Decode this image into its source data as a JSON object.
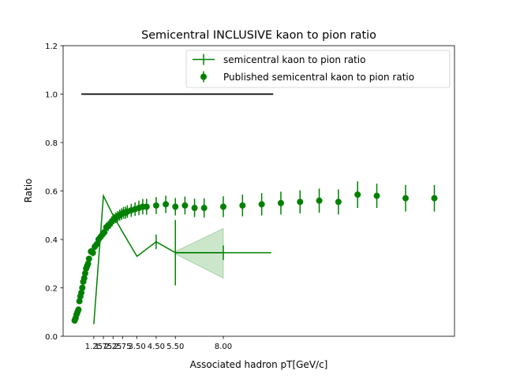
{
  "chart_data": {
    "type": "line",
    "title": "Semicentral INCLUSIVE kaon to pion ratio",
    "xlabel": "Associated hadron pT[GeV/c]",
    "ylabel": "Ratio",
    "xlim": [
      -0.35,
      20.05
    ],
    "ylim": [
      0,
      1.2
    ],
    "xticks": [
      1.25,
      1.75,
      2.25,
      2.75,
      3.5,
      4.5,
      5.5,
      8.0
    ],
    "xtick_labels": [
      "1.25",
      "1.75",
      "2.25",
      "2.75",
      "3.50",
      "4.50",
      "5.50",
      "8.00"
    ],
    "yticks": [
      0.0,
      0.2,
      0.4,
      0.6,
      0.8,
      1.0,
      1.2
    ],
    "ytick_labels": [
      "0.0",
      "0.2",
      "0.4",
      "0.6",
      "0.8",
      "1.0",
      "1.2"
    ],
    "legend_position": "top-right",
    "reference_line": {
      "y": 1.0,
      "x_start": 0.6,
      "x_end": 10.6,
      "color": "#000000"
    },
    "series": [
      {
        "name": "semicentral kaon to pion ratio",
        "color": "#008000",
        "x": [
          1.25,
          1.75,
          2.25,
          2.75,
          3.5,
          4.5,
          5.5,
          8.0
        ],
        "y": [
          0.05,
          0.58,
          0.5,
          0.43,
          0.33,
          0.39,
          0.345,
          0.345
        ],
        "xerr": [
          0,
          0,
          0,
          0,
          0,
          0,
          0,
          2.5
        ],
        "yerr": [
          0,
          0,
          0,
          0,
          0,
          0.03,
          0.135,
          0.03
        ],
        "band": {
          "x": [
            5.5,
            8.0
          ],
          "lower": [
            0.34,
            0.24
          ],
          "upper": [
            0.35,
            0.445
          ]
        }
      },
      {
        "name": "Published semicentral kaon to pion ratio",
        "color": "#008000",
        "x": [
          0.25,
          0.3,
          0.35,
          0.4,
          0.45,
          0.5,
          0.55,
          0.6,
          0.65,
          0.7,
          0.75,
          0.8,
          0.85,
          0.9,
          0.95,
          1.0,
          1.1,
          1.2,
          1.3,
          1.4,
          1.5,
          1.6,
          1.7,
          1.8,
          1.9,
          2.0,
          2.1,
          2.2,
          2.3,
          2.4,
          2.5,
          2.6,
          2.7,
          2.8,
          2.9,
          3.0,
          3.2,
          3.4,
          3.6,
          3.8,
          4.0,
          4.5,
          5.0,
          5.5,
          6.0,
          6.5,
          7.0,
          8.0,
          9.0,
          10.0,
          11.0,
          12.0,
          13.0,
          14.0,
          15.0,
          16.0,
          17.5,
          19.0
        ],
        "y": [
          0.065,
          0.075,
          0.09,
          0.1,
          0.11,
          0.145,
          0.165,
          0.18,
          0.2,
          0.225,
          0.24,
          0.26,
          0.28,
          0.29,
          0.3,
          0.32,
          0.35,
          0.345,
          0.37,
          0.38,
          0.4,
          0.41,
          0.42,
          0.43,
          0.45,
          0.455,
          0.465,
          0.475,
          0.485,
          0.49,
          0.495,
          0.5,
          0.505,
          0.51,
          0.51,
          0.515,
          0.52,
          0.525,
          0.53,
          0.535,
          0.535,
          0.54,
          0.545,
          0.535,
          0.54,
          0.53,
          0.53,
          0.535,
          0.54,
          0.545,
          0.55,
          0.555,
          0.56,
          0.555,
          0.585,
          0.58,
          0.57,
          0.57
        ],
        "yerr": [
          0.01,
          0.01,
          0.01,
          0.01,
          0.01,
          0.012,
          0.012,
          0.012,
          0.012,
          0.012,
          0.012,
          0.012,
          0.012,
          0.012,
          0.012,
          0.013,
          0.015,
          0.015,
          0.015,
          0.016,
          0.016,
          0.017,
          0.018,
          0.018,
          0.019,
          0.02,
          0.02,
          0.021,
          0.021,
          0.022,
          0.022,
          0.023,
          0.024,
          0.024,
          0.025,
          0.026,
          0.027,
          0.028,
          0.03,
          0.032,
          0.033,
          0.035,
          0.036,
          0.036,
          0.037,
          0.038,
          0.04,
          0.043,
          0.045,
          0.046,
          0.047,
          0.048,
          0.05,
          0.052,
          0.055,
          0.05,
          0.055,
          0.055
        ]
      }
    ]
  }
}
